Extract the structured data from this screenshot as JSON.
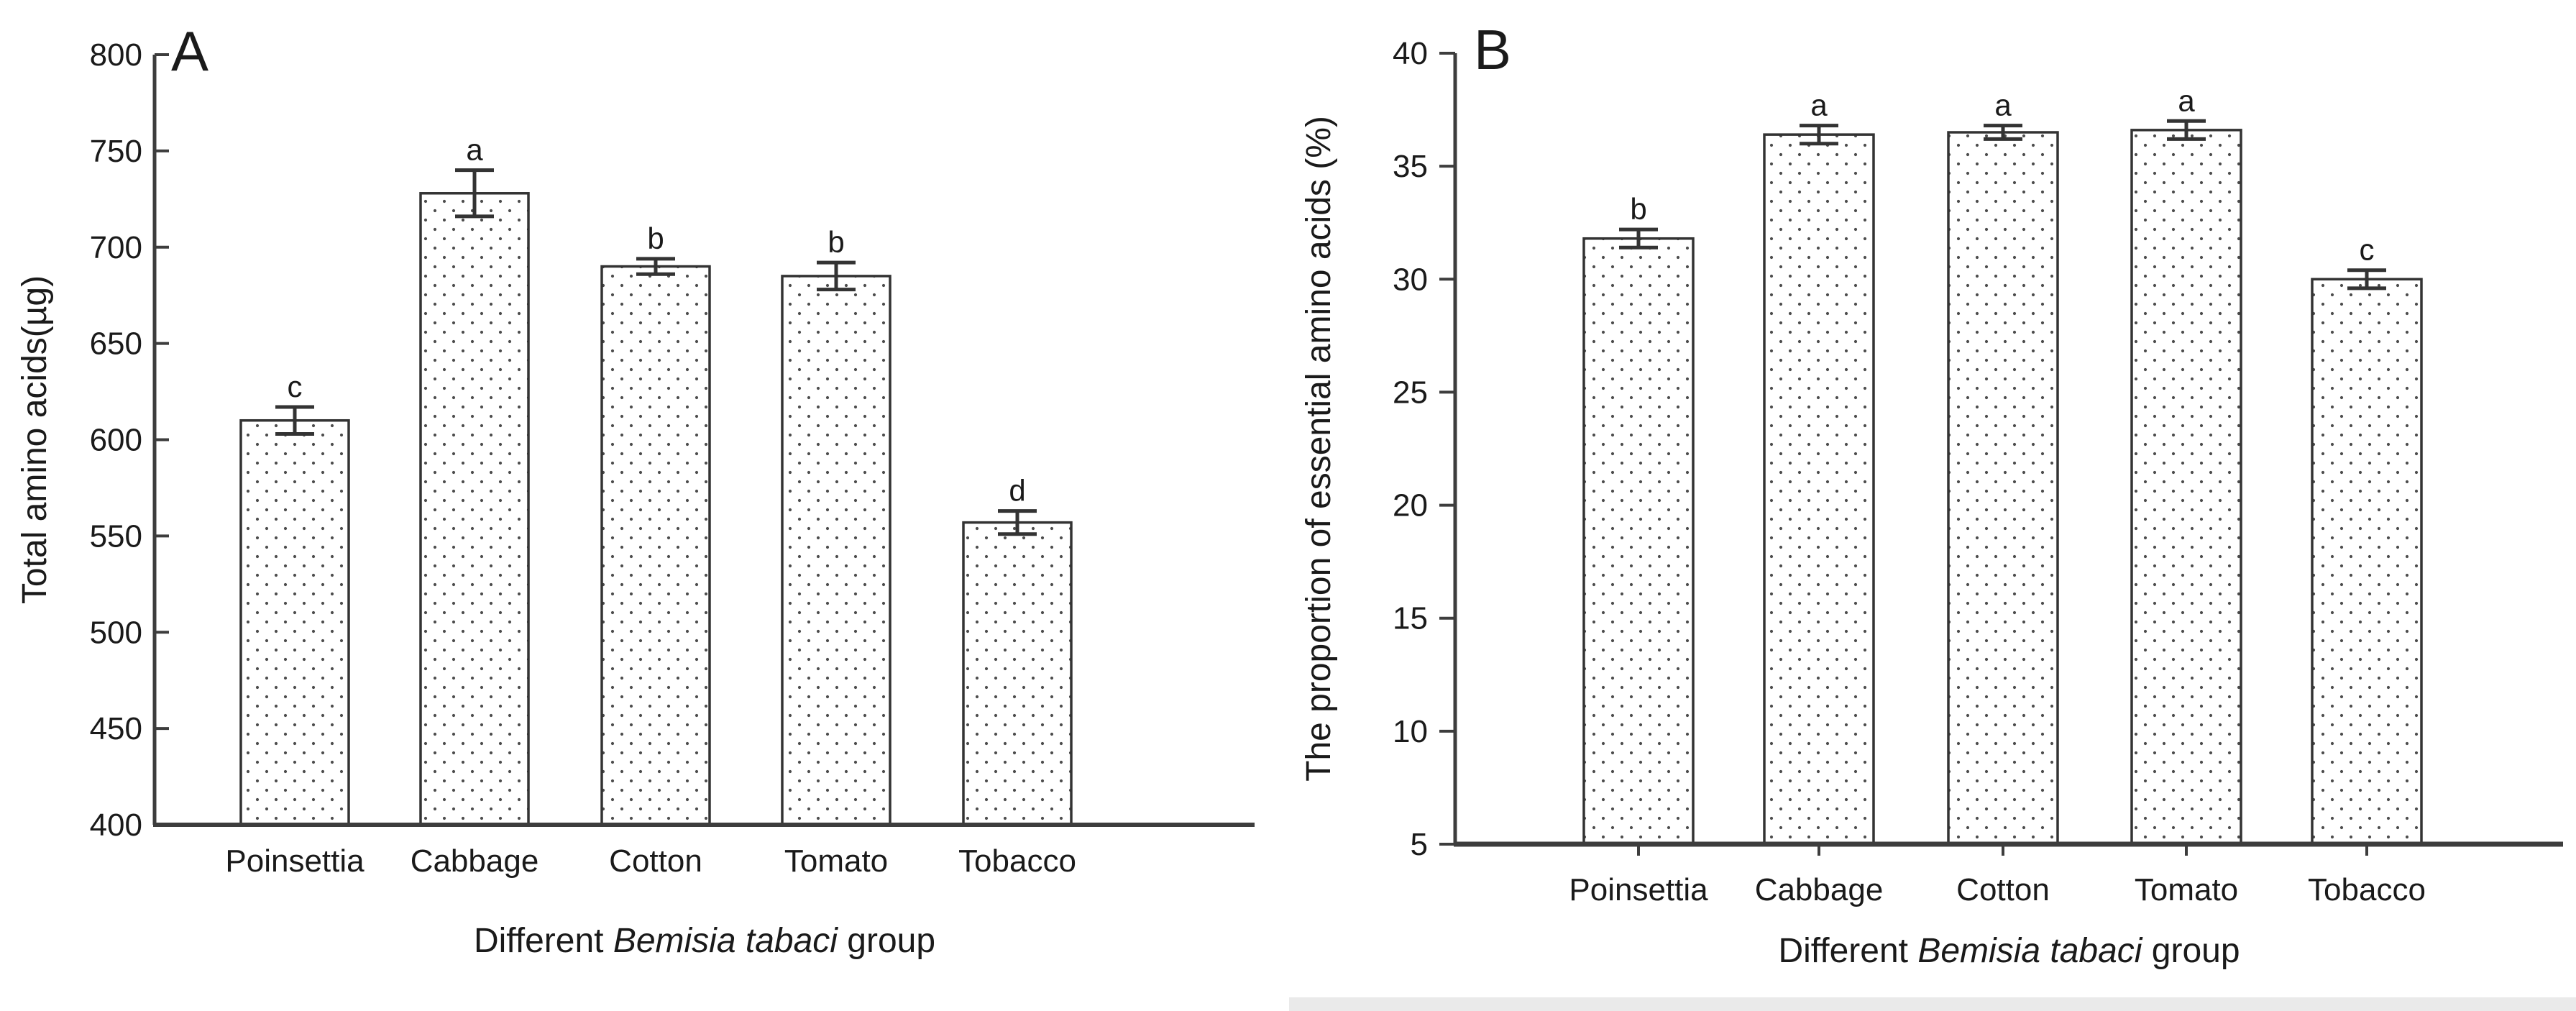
{
  "page": {
    "background": "#ffffff",
    "bottom_band_color": "#eaeaea"
  },
  "chart_data": [
    {
      "panel_label": "A",
      "type": "bar",
      "categories": [
        "Poinsettia",
        "Cabbage",
        "Cotton",
        "Tomato",
        "Tobacco"
      ],
      "values": [
        610,
        728,
        690,
        685,
        557
      ],
      "errors": [
        7,
        12,
        4,
        7,
        6
      ],
      "sig_letters": [
        "c",
        "a",
        "b",
        "b",
        "d"
      ],
      "title": "",
      "ylabel": "Total amino acids(µg)",
      "xlabel": "Different Bemisia tabaci group",
      "xlabel_parts": [
        {
          "text": "Different ",
          "italic": false
        },
        {
          "text": "Bemisia tabaci",
          "italic": true
        },
        {
          "text": " group",
          "italic": false
        }
      ],
      "ylim": [
        400,
        800
      ],
      "ytick_step": 50,
      "yticks": [
        400,
        450,
        500,
        550,
        600,
        650,
        700,
        750,
        800
      ],
      "grid": false,
      "legend": null,
      "bar_style": "white fill with small dark dot pattern, dark outline, SE-style error bars with caps",
      "colors": {
        "bar_fill": "#ffffff",
        "dot": "#4d4d4d",
        "bar_stroke": "#333333",
        "axis": "#3d3d3d",
        "text": "#1a1a1a"
      }
    },
    {
      "panel_label": "B",
      "type": "bar",
      "categories": [
        "Poinsettia",
        "Cabbage",
        "Cotton",
        "Tomato",
        "Tobacco"
      ],
      "values": [
        31.8,
        36.4,
        36.5,
        36.6,
        30.0
      ],
      "errors": [
        0.4,
        0.4,
        0.3,
        0.4,
        0.4
      ],
      "sig_letters": [
        "b",
        "a",
        "a",
        "a",
        "c"
      ],
      "title": "",
      "ylabel": "The proportion of essential amino acids (%)",
      "xlabel": "Different Bemisia tabaci group",
      "xlabel_parts": [
        {
          "text": "Different ",
          "italic": false
        },
        {
          "text": "Bemisia tabaci",
          "italic": true
        },
        {
          "text": " group",
          "italic": false
        }
      ],
      "ylim": [
        5,
        40
      ],
      "ytick_step": 5,
      "yticks": [
        5,
        10,
        15,
        20,
        25,
        30,
        35,
        40
      ],
      "grid": false,
      "legend": null,
      "bar_style": "white fill with small dark dot pattern, dark outline, SE-style error bars with caps",
      "colors": {
        "bar_fill": "#ffffff",
        "dot": "#4d4d4d",
        "bar_stroke": "#333333",
        "axis": "#3d3d3d",
        "text": "#1a1a1a"
      }
    }
  ]
}
